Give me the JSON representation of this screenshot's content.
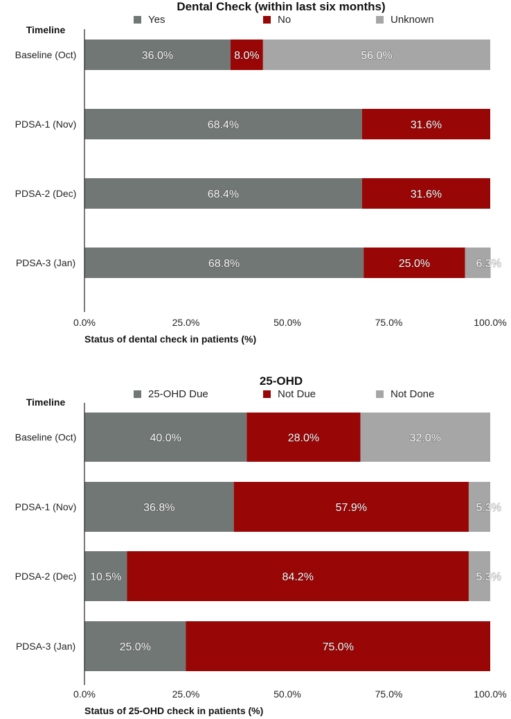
{
  "chart_data": [
    {
      "type": "bar",
      "orientation": "horizontal",
      "stacked": true,
      "title": "Dental Check (within last six months)",
      "ytitle": "Timeline",
      "xlabel": "Status of dental check in patients (%)",
      "categories": [
        "Baseline (Oct)",
        "PDSA-1 (Nov)",
        "PDSA-2 (Dec)",
        "PDSA-3 (Jan)"
      ],
      "series": [
        {
          "name": "Yes",
          "color": "#717775",
          "values": [
            36.0,
            68.4,
            68.4,
            68.8
          ],
          "labels": [
            "36.0%",
            "68.4%",
            "68.4%",
            "68.8%"
          ]
        },
        {
          "name": "No",
          "color": "#990606",
          "values": [
            8.0,
            31.6,
            31.6,
            25.0
          ],
          "labels": [
            "8.0%",
            "31.6%",
            "31.6%",
            "25.0%"
          ]
        },
        {
          "name": "Unknown",
          "color": "#a6a6a6",
          "values": [
            56.0,
            0,
            0,
            6.3
          ],
          "labels": [
            "56.0%",
            "",
            "",
            "6.3%"
          ]
        }
      ],
      "xticks": [
        "0.0%",
        "25.0%",
        "50.0%",
        "75.0%",
        "100.0%"
      ],
      "xlim": [
        0,
        100
      ],
      "legend_position": "top"
    },
    {
      "type": "bar",
      "orientation": "horizontal",
      "stacked": true,
      "title": "25-OHD",
      "ytitle": "Timeline",
      "xlabel": "Status of 25-OHD check in patients (%)",
      "categories": [
        "Baseline (Oct)",
        "PDSA-1 (Nov)",
        "PDSA-2 (Dec)",
        "PDSA-3 (Jan)"
      ],
      "series": [
        {
          "name": "25-OHD Due",
          "color": "#717775",
          "values": [
            40.0,
            36.8,
            10.5,
            25.0
          ],
          "labels": [
            "40.0%",
            "36.8%",
            "10.5%",
            "25.0%"
          ]
        },
        {
          "name": "Not Due",
          "color": "#990606",
          "values": [
            28.0,
            57.9,
            84.2,
            75.0
          ],
          "labels": [
            "28.0%",
            "57.9%",
            "84.2%",
            "75.0%"
          ]
        },
        {
          "name": "Not Done",
          "color": "#a6a6a6",
          "values": [
            32.0,
            5.3,
            5.3,
            0
          ],
          "labels": [
            "32.0%",
            "5.3%",
            "5.3%",
            ""
          ]
        }
      ],
      "xticks": [
        "0.0%",
        "25.0%",
        "50.0%",
        "75.0%",
        "100.0%"
      ],
      "xlim": [
        0,
        100
      ],
      "legend_position": "top"
    }
  ]
}
